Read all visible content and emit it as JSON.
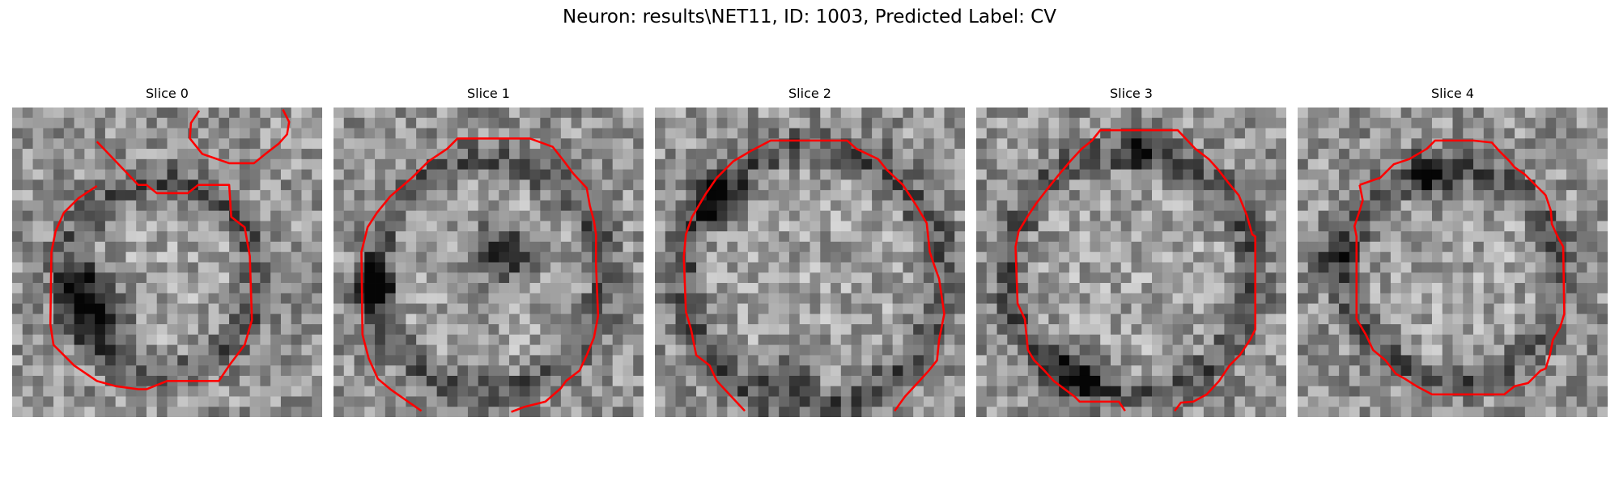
{
  "figure": {
    "title": "Neuron: results\\NET11, ID: 1003, Predicted Label: CV"
  },
  "panels": [
    {
      "title": "Slice 0"
    },
    {
      "title": "Slice 1"
    },
    {
      "title": "Slice 2"
    },
    {
      "title": "Slice 3"
    },
    {
      "title": "Slice 4"
    }
  ],
  "style": {
    "contour_color": "#ff0000",
    "colormap": "gray",
    "background": "#ffffff"
  }
}
